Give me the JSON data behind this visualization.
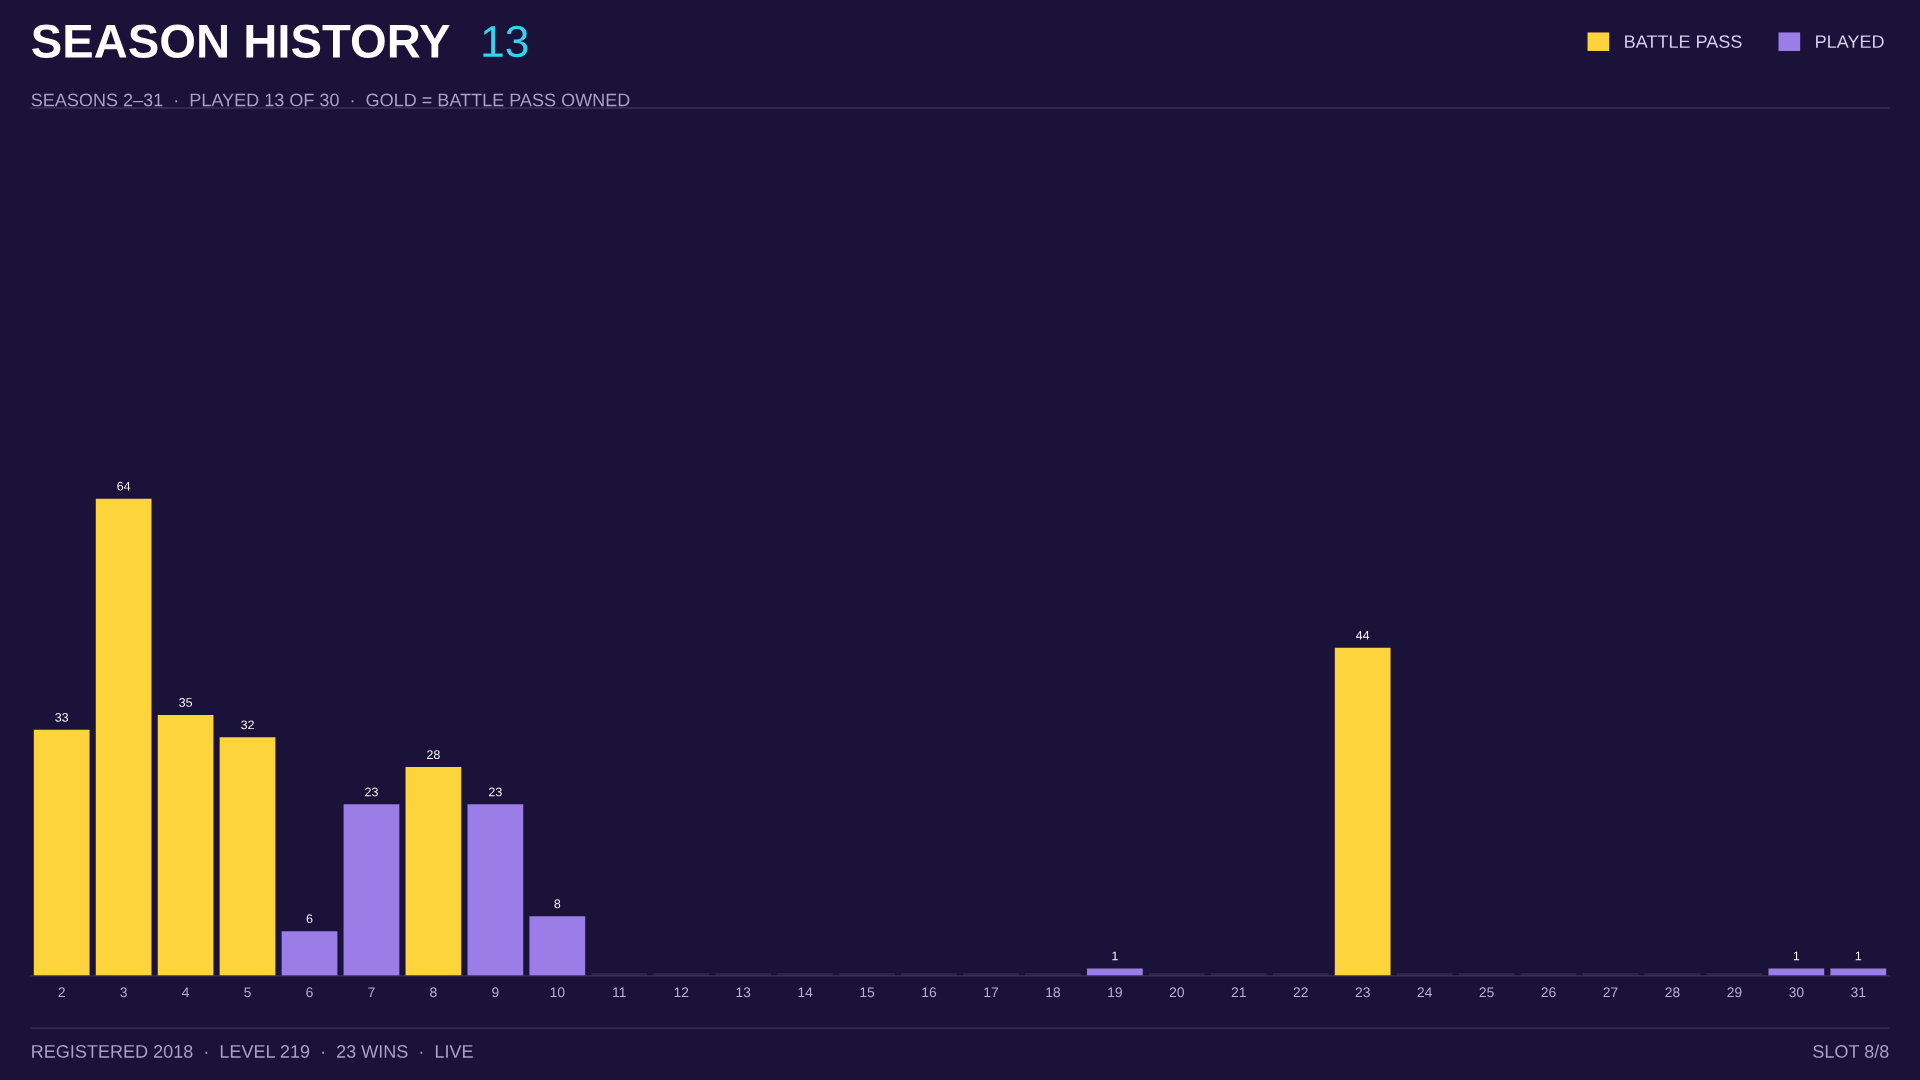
{
  "chart_data": {
    "type": "bar",
    "title": "SEASON HISTORY",
    "subtitle": "13",
    "annotations": [
      "SEASONS 2–31  ·  PLAYED 13 OF 30  ·  GOLD = BATTLE PASS OWNED",
      "REGISTERED 2018  ·  LEVEL 219  ·  23 WINS  ·  LIVE",
      "SLOT 8/8"
    ],
    "categories": [
      "2",
      "3",
      "4",
      "5",
      "6",
      "7",
      "8",
      "9",
      "10",
      "11",
      "12",
      "13",
      "14",
      "15",
      "16",
      "17",
      "18",
      "19",
      "20",
      "21",
      "22",
      "23",
      "24",
      "25",
      "26",
      "27",
      "28",
      "29",
      "30",
      "31"
    ],
    "series": [
      {
        "name": "BATTLE PASS",
        "color": "#fdd43c",
        "values": [
          33,
          64,
          35,
          32,
          null,
          null,
          28,
          null,
          null,
          null,
          null,
          null,
          null,
          null,
          null,
          null,
          null,
          null,
          null,
          null,
          null,
          44,
          null,
          null,
          null,
          null,
          null,
          null,
          null,
          null
        ]
      },
      {
        "name": "PLAYED",
        "color": "#9b7de8",
        "values": [
          null,
          null,
          null,
          null,
          6,
          23,
          null,
          23,
          8,
          null,
          null,
          null,
          null,
          null,
          null,
          null,
          null,
          1,
          null,
          null,
          null,
          null,
          null,
          null,
          null,
          null,
          null,
          null,
          1,
          1
        ]
      },
      {
        "color": "#2c2548",
        "values": [
          null,
          null,
          null,
          null,
          null,
          null,
          null,
          null,
          null,
          0,
          0,
          0,
          0,
          0,
          0,
          0,
          0,
          null,
          0,
          0,
          0,
          null,
          0,
          0,
          0,
          0,
          0,
          0,
          null,
          null
        ],
        "value_labels": [
          null,
          null,
          null,
          null,
          null,
          null,
          null,
          null,
          null,
          null,
          null,
          null,
          null,
          null,
          null,
          null,
          null,
          null,
          null,
          null,
          null,
          null,
          null,
          null,
          null,
          null,
          null,
          null,
          null,
          null
        ]
      }
    ],
    "data_labels": true,
    "legend": "top right",
    "grid": false
  }
}
